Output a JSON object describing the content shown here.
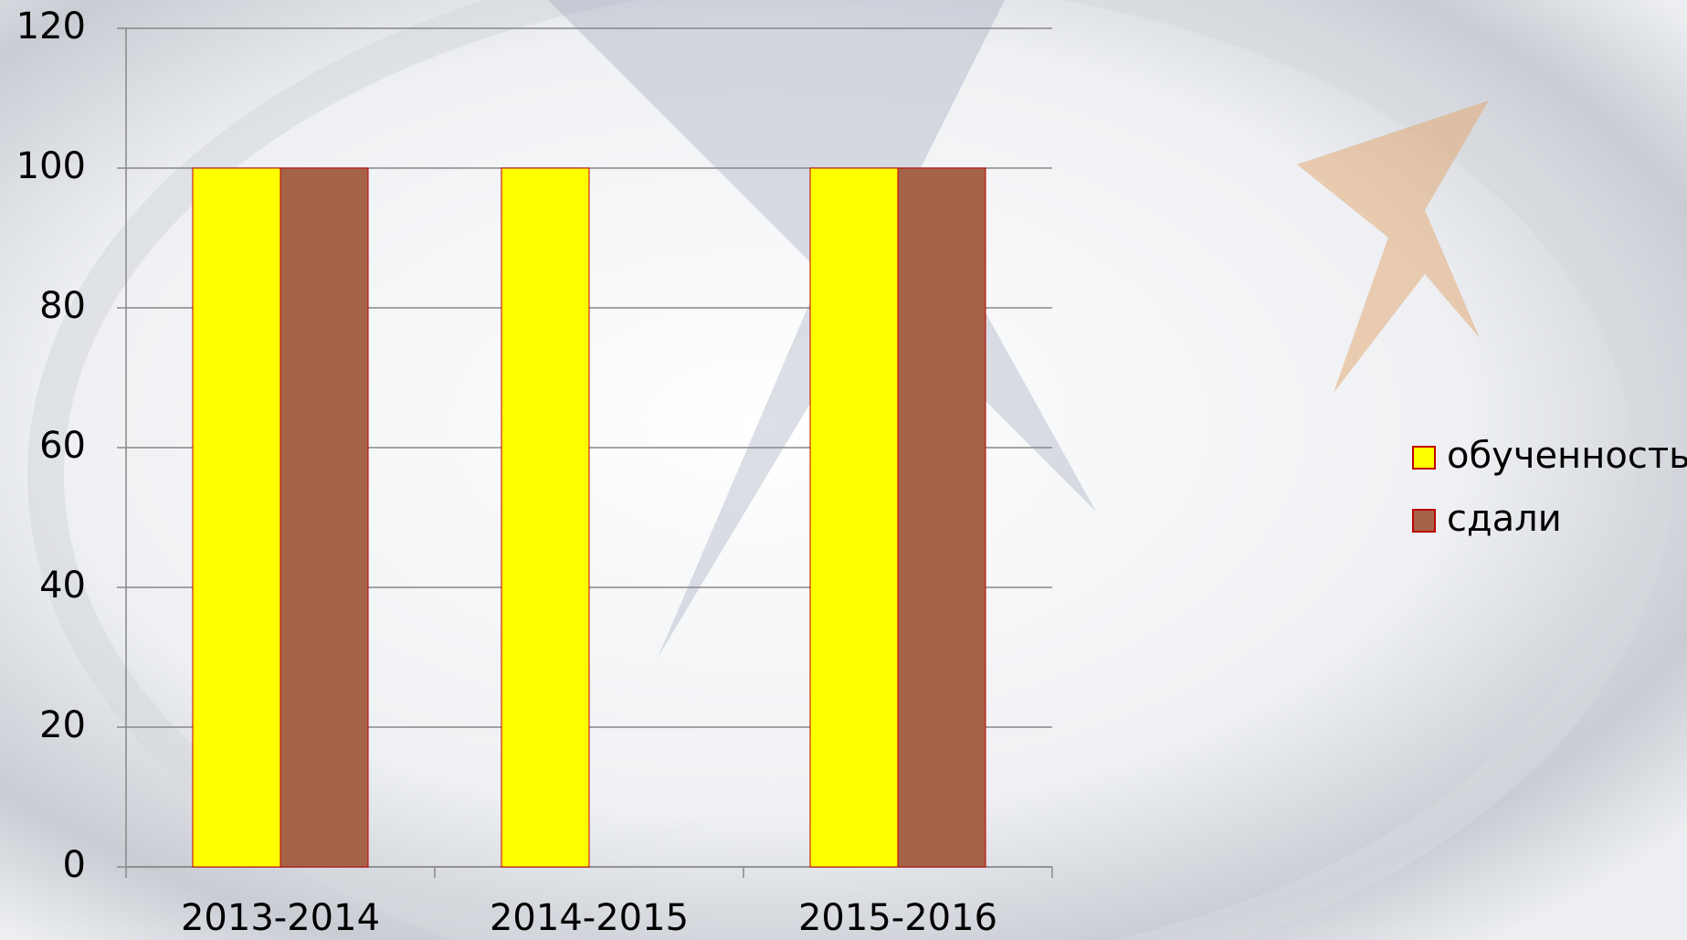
{
  "chart_data": {
    "type": "bar",
    "categories": [
      "2013-2014",
      "2014-2015",
      "2015-2016"
    ],
    "series": [
      {
        "name": "обученность",
        "color": "#ffff00",
        "values": [
          100,
          100,
          100
        ]
      },
      {
        "name": "сдали",
        "color": "#a5634a",
        "values": [
          100,
          null,
          100
        ]
      }
    ],
    "ylim": [
      0,
      120
    ],
    "yticks": [
      0,
      20,
      40,
      60,
      80,
      100,
      120
    ],
    "grid": true,
    "legend": "right"
  }
}
